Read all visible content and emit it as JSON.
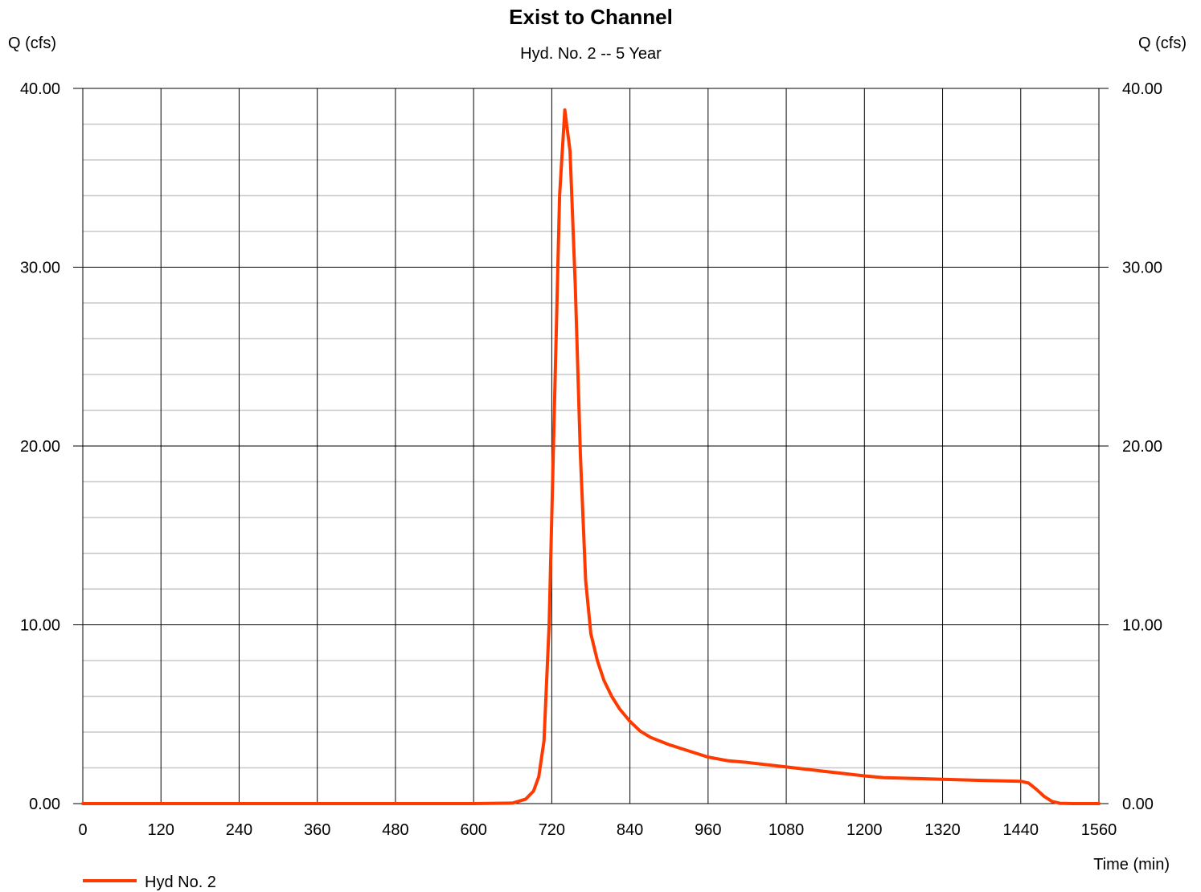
{
  "chart_data": {
    "type": "line",
    "title": "Exist to Channel",
    "subtitle": "Hyd. No. 2 -- 5 Year",
    "ylabel_left": "Q (cfs)",
    "ylabel_right": "Q (cfs)",
    "xlabel": "Time (min)",
    "xlim": [
      0,
      1560
    ],
    "ylim": [
      0,
      40
    ],
    "x_ticks": [
      "0",
      "120",
      "240",
      "360",
      "480",
      "600",
      "720",
      "840",
      "960",
      "1080",
      "1200",
      "1320",
      "1440",
      "1560"
    ],
    "y_ticks": [
      "0.00",
      "10.00",
      "20.00",
      "30.00",
      "40.00"
    ],
    "y_minor_step": 2,
    "grid": true,
    "legend_position": "bottom-left",
    "series": [
      {
        "name": "Hyd No. 2",
        "color": "#ff3a00",
        "x": [
          0,
          600,
          660,
          680,
          692,
          700,
          708,
          716,
          724,
          732,
          740,
          748,
          756,
          764,
          772,
          780,
          790,
          800,
          812,
          824,
          840,
          856,
          872,
          900,
          930,
          960,
          990,
          1020,
          1080,
          1140,
          1200,
          1230,
          1260,
          1320,
          1380,
          1440,
          1452,
          1464,
          1476,
          1488,
          1500,
          1520,
          1560
        ],
        "values": [
          0,
          0,
          0.03,
          0.25,
          0.7,
          1.5,
          3.5,
          10.0,
          22.0,
          34.0,
          38.8,
          36.5,
          29.0,
          19.5,
          12.5,
          9.5,
          8.0,
          6.9,
          6.0,
          5.3,
          4.6,
          4.05,
          3.7,
          3.3,
          2.95,
          2.6,
          2.4,
          2.3,
          2.05,
          1.8,
          1.55,
          1.45,
          1.42,
          1.36,
          1.3,
          1.25,
          1.15,
          0.8,
          0.4,
          0.12,
          0.02,
          0,
          0
        ]
      }
    ]
  }
}
